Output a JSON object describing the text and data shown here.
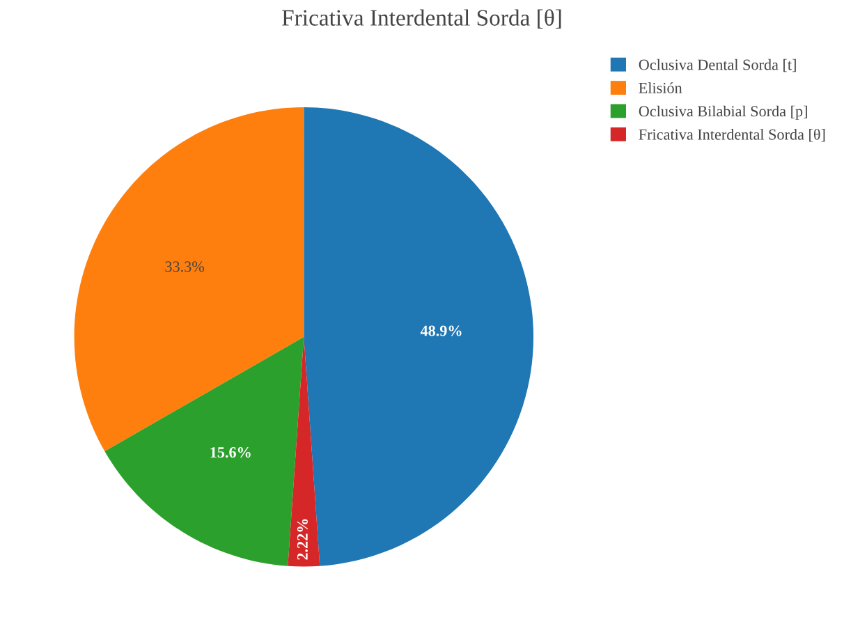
{
  "chart_data": {
    "type": "pie",
    "title": "Fricativa Interdental Sorda [θ]",
    "categories": [
      "Oclusiva Dental Sorda [t]",
      "Elisión",
      "Oclusiva Bilabial Sorda [p]",
      "Fricativa Interdental Sorda [θ]"
    ],
    "values": [
      48.9,
      33.3,
      15.6,
      2.22
    ],
    "colors": [
      "#1f77b4",
      "#ff7f0e",
      "#2ca02c",
      "#d62728"
    ],
    "value_labels": [
      "48.9%",
      "33.3%",
      "15.6%",
      "2.22%"
    ],
    "legend": "top right"
  }
}
